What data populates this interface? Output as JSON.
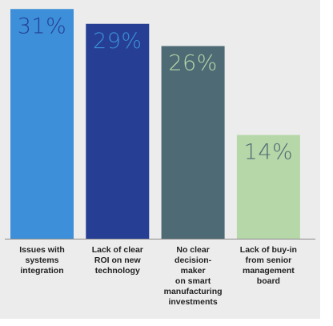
{
  "chart_data": {
    "type": "bar",
    "categories": [
      "Issues with\nsystems\nintegration",
      "Lack of clear\nROI on new\ntechnology",
      "No clear\ndecision-\nmaker\non smart\nmanufacturing\ninvestments",
      "Lack of buy-in\nfrom senior\nmanagement\nboard"
    ],
    "values": [
      31,
      29,
      26,
      14
    ],
    "value_labels": [
      "31%",
      "29%",
      "26%",
      "14%"
    ],
    "colors": [
      "#3c8fd8",
      "#263f95",
      "#4e6a75",
      "#b6d7a8"
    ],
    "value_label_colors": [
      "#263f95",
      "#3c8fd8",
      "#b6d7a8",
      "#4e6a75"
    ]
  }
}
